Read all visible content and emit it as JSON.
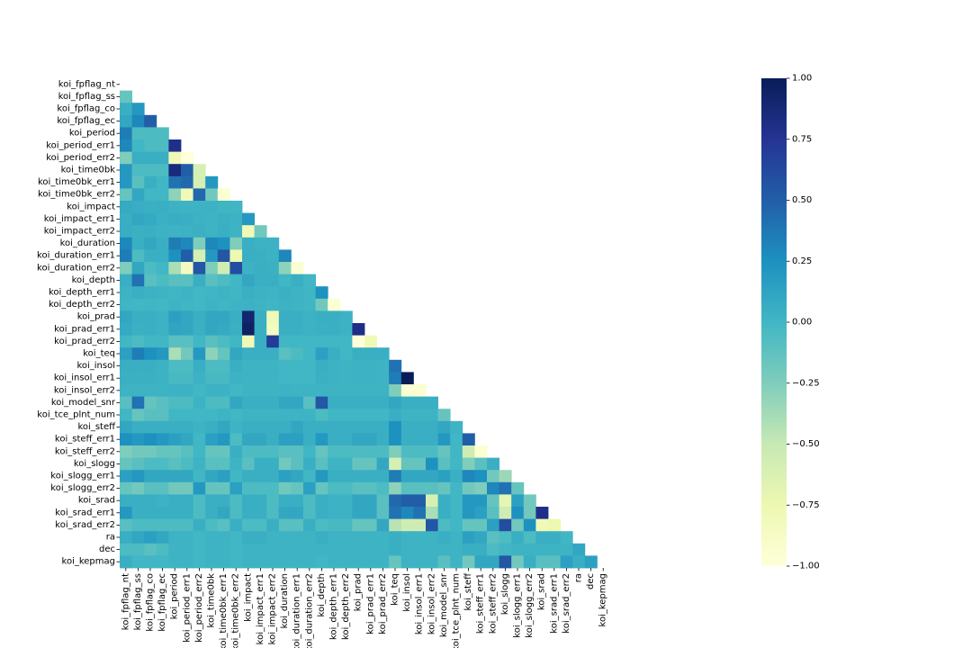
{
  "chart_data": {
    "type": "heatmap",
    "title": "",
    "xlabel": "",
    "ylabel": "",
    "mask": "upper-triangle-including-diagonal",
    "colormap": "YlGnBu",
    "colormap_stops": [
      "#ffffd9",
      "#edf8b1",
      "#c7e9b4",
      "#7fcdbb",
      "#41b6c4",
      "#1d91c0",
      "#225ea8",
      "#253494",
      "#081d58"
    ],
    "vmin": -1.0,
    "vmax": 1.0,
    "colorbar_ticks": [
      {
        "value": 1.0,
        "label": "1.00"
      },
      {
        "value": 0.75,
        "label": "0.75"
      },
      {
        "value": 0.5,
        "label": "0.50"
      },
      {
        "value": 0.25,
        "label": "0.25"
      },
      {
        "value": 0.0,
        "label": "0.00"
      },
      {
        "value": -0.25,
        "label": "−0.25"
      },
      {
        "value": -0.5,
        "label": "−0.50"
      },
      {
        "value": -0.75,
        "label": "−0.75"
      },
      {
        "value": -1.0,
        "label": "−1.00"
      }
    ],
    "variables": [
      "koi_fpflag_nt",
      "koi_fpflag_ss",
      "koi_fpflag_co",
      "koi_fpflag_ec",
      "koi_period",
      "koi_period_err1",
      "koi_period_err2",
      "koi_time0bk",
      "koi_time0bk_err1",
      "koi_time0bk_err2",
      "koi_impact",
      "koi_impact_err1",
      "koi_impact_err2",
      "koi_duration",
      "koi_duration_err1",
      "koi_duration_err2",
      "koi_depth",
      "koi_depth_err1",
      "koi_depth_err2",
      "koi_prad",
      "koi_prad_err1",
      "koi_prad_err2",
      "koi_teq",
      "koi_insol",
      "koi_insol_err1",
      "koi_insol_err2",
      "koi_model_snr",
      "koi_tce_plnt_num",
      "koi_steff",
      "koi_steff_err1",
      "koi_steff_err2",
      "koi_slogg",
      "koi_slogg_err1",
      "koi_slogg_err2",
      "koi_srad",
      "koi_srad_err1",
      "koi_srad_err2",
      "ra",
      "dec",
      "koi_kepmag"
    ],
    "matrix": [
      [],
      [
        -0.15
      ],
      [
        0.05,
        0.2
      ],
      [
        0.1,
        0.3,
        0.5
      ],
      [
        0.35,
        -0.05,
        -0.05,
        -0.05
      ],
      [
        0.3,
        0.0,
        -0.05,
        -0.05,
        0.8
      ],
      [
        -0.25,
        0.05,
        0.05,
        0.05,
        -0.8,
        -1.0
      ],
      [
        0.2,
        -0.05,
        -0.05,
        -0.05,
        0.85,
        0.5,
        -0.6
      ],
      [
        0.2,
        -0.1,
        0.05,
        0.0,
        0.4,
        0.45,
        -0.6,
        0.2
      ],
      [
        -0.15,
        0.1,
        0.0,
        0.0,
        -0.3,
        -0.8,
        0.45,
        -0.2,
        -0.95
      ],
      [
        0.08,
        0.06,
        0.04,
        0.05,
        0.03,
        0.02,
        0.02,
        0.03,
        0.01,
        0.01
      ],
      [
        0.05,
        0.1,
        0.08,
        0.04,
        0.06,
        0.05,
        0.03,
        0.02,
        0.04,
        0.03,
        0.2
      ],
      [
        0.06,
        0.04,
        0.05,
        0.03,
        0.02,
        0.03,
        0.04,
        0.02,
        0.05,
        0.02,
        -0.8,
        -0.2
      ],
      [
        0.3,
        0.05,
        0.1,
        0.05,
        0.35,
        0.3,
        -0.25,
        0.3,
        0.25,
        -0.25,
        0.05,
        0.03,
        0.03
      ],
      [
        0.35,
        -0.05,
        0.05,
        0.05,
        0.25,
        0.5,
        -0.6,
        0.2,
        0.55,
        -0.75,
        0.05,
        0.04,
        0.03,
        0.3
      ],
      [
        -0.25,
        0.1,
        -0.05,
        0.0,
        -0.4,
        -0.85,
        0.55,
        -0.25,
        -0.55,
        0.6,
        0.03,
        0.05,
        0.04,
        -0.3,
        -0.95
      ],
      [
        0.05,
        0.4,
        -0.1,
        -0.05,
        -0.1,
        -0.1,
        0.05,
        -0.1,
        -0.05,
        0.0,
        0.1,
        0.05,
        0.05,
        0.0,
        0.05,
        0.0
      ],
      [
        0.02,
        0.05,
        0.03,
        0.02,
        0.01,
        0.02,
        0.0,
        0.01,
        0.02,
        0.01,
        0.05,
        0.03,
        0.02,
        0.04,
        0.02,
        0.01,
        0.25
      ],
      [
        0.01,
        0.0,
        0.01,
        0.0,
        0.02,
        0.01,
        0.0,
        0.02,
        0.01,
        0.02,
        0.03,
        0.02,
        0.01,
        0.03,
        0.02,
        0.01,
        -0.2,
        -0.95
      ],
      [
        0.1,
        0.05,
        0.05,
        0.03,
        0.15,
        0.1,
        0.05,
        0.1,
        0.1,
        0.05,
        0.9,
        0.05,
        -0.8,
        0.05,
        0.05,
        0.03,
        0.05,
        0.05,
        0.03
      ],
      [
        0.08,
        0.04,
        0.05,
        0.03,
        0.12,
        0.1,
        0.04,
        0.1,
        0.08,
        0.04,
        0.95,
        0.05,
        -0.85,
        0.05,
        0.05,
        0.03,
        0.04,
        0.05,
        0.03,
        0.8
      ],
      [
        0.0,
        -0.05,
        0.0,
        0.0,
        -0.1,
        -0.1,
        0.0,
        -0.1,
        -0.05,
        0.0,
        -0.8,
        0.05,
        0.7,
        0.0,
        0.0,
        0.0,
        0.0,
        0.0,
        0.0,
        -1.0,
        -0.8
      ],
      [
        0.15,
        0.35,
        0.25,
        0.2,
        -0.4,
        -0.2,
        0.2,
        -0.3,
        -0.15,
        0.1,
        0.05,
        0.05,
        0.05,
        -0.1,
        -0.05,
        0.0,
        0.15,
        0.05,
        0.0,
        0.05,
        0.05,
        0.05
      ],
      [
        0.05,
        0.05,
        0.05,
        0.03,
        -0.05,
        -0.05,
        0.05,
        -0.05,
        -0.05,
        0.05,
        0.02,
        0.02,
        0.02,
        0.0,
        0.0,
        0.0,
        0.05,
        0.03,
        0.02,
        0.03,
        0.03,
        0.02,
        0.4
      ],
      [
        0.04,
        0.04,
        0.04,
        0.03,
        -0.03,
        -0.03,
        0.03,
        -0.03,
        -0.03,
        0.03,
        0.02,
        0.02,
        0.02,
        0.0,
        0.0,
        0.0,
        0.04,
        0.03,
        0.02,
        0.03,
        0.03,
        0.02,
        0.35,
        1.0
      ],
      [
        0.02,
        0.02,
        0.02,
        0.02,
        0.03,
        0.03,
        0.0,
        0.03,
        0.03,
        0.0,
        0.02,
        0.02,
        0.02,
        0.03,
        0.02,
        0.02,
        0.02,
        0.02,
        0.02,
        0.02,
        0.02,
        0.02,
        -0.25,
        -0.95,
        -0.95
      ],
      [
        -0.1,
        0.4,
        -0.15,
        -0.1,
        -0.05,
        -0.05,
        0.03,
        -0.05,
        -0.05,
        0.1,
        0.05,
        0.05,
        0.05,
        0.1,
        0.1,
        -0.1,
        0.55,
        0.05,
        0.05,
        0.05,
        0.05,
        0.05,
        0.1,
        0.05,
        0.05,
        0.05
      ],
      [
        0.0,
        -0.15,
        -0.1,
        -0.1,
        0.0,
        0.0,
        0.0,
        0.0,
        0.02,
        0.0,
        0.02,
        0.02,
        0.02,
        0.02,
        0.02,
        0.02,
        -0.05,
        0.0,
        0.0,
        0.0,
        0.0,
        0.0,
        0.05,
        0.02,
        0.02,
        0.02,
        -0.15
      ],
      [
        0.1,
        0.05,
        0.05,
        0.05,
        0.05,
        0.05,
        0.02,
        0.05,
        0.1,
        0.02,
        0.05,
        0.05,
        0.05,
        0.05,
        0.1,
        0.05,
        0.05,
        0.05,
        0.05,
        0.05,
        0.05,
        0.05,
        0.25,
        0.05,
        0.05,
        0.05,
        0.1,
        0.02
      ],
      [
        0.25,
        0.2,
        0.25,
        0.2,
        0.15,
        0.1,
        0.0,
        0.15,
        0.2,
        -0.05,
        0.1,
        0.1,
        0.05,
        0.15,
        0.15,
        0.05,
        0.2,
        0.05,
        0.05,
        0.1,
        0.1,
        0.05,
        0.25,
        0.05,
        0.05,
        0.05,
        0.2,
        0.0,
        0.5
      ],
      [
        -0.25,
        -0.2,
        -0.2,
        -0.15,
        -0.15,
        -0.1,
        0.0,
        -0.15,
        -0.15,
        0.05,
        -0.05,
        -0.05,
        -0.05,
        -0.1,
        -0.1,
        0.0,
        -0.15,
        -0.05,
        -0.05,
        -0.05,
        -0.05,
        -0.05,
        -0.25,
        -0.05,
        -0.05,
        -0.05,
        -0.15,
        0.0,
        -0.55,
        -0.95
      ],
      [
        -0.15,
        -0.1,
        -0.05,
        -0.05,
        -0.1,
        -0.05,
        0.02,
        -0.1,
        -0.1,
        0.02,
        -0.1,
        0.05,
        0.05,
        -0.2,
        -0.1,
        0.05,
        -0.1,
        0.02,
        0.02,
        -0.15,
        -0.15,
        0.1,
        -0.6,
        -0.15,
        -0.15,
        0.25,
        -0.1,
        0.0,
        -0.25,
        -0.1,
        0.05
      ],
      [
        0.15,
        0.2,
        0.1,
        0.1,
        0.1,
        0.1,
        0.0,
        0.1,
        0.15,
        0.0,
        0.05,
        0.05,
        0.05,
        0.15,
        0.1,
        0.0,
        0.2,
        0.05,
        0.05,
        0.05,
        0.05,
        0.05,
        0.35,
        0.1,
        0.1,
        0.1,
        0.15,
        0.05,
        0.3,
        0.25,
        -0.2,
        -0.35
      ],
      [
        -0.15,
        -0.2,
        -0.1,
        -0.1,
        -0.2,
        -0.2,
        0.2,
        -0.15,
        -0.15,
        0.15,
        -0.05,
        -0.05,
        -0.05,
        -0.2,
        -0.15,
        0.15,
        -0.15,
        -0.05,
        -0.05,
        -0.1,
        -0.1,
        -0.05,
        -0.3,
        -0.1,
        -0.1,
        -0.1,
        -0.15,
        0.0,
        -0.2,
        -0.25,
        0.3,
        0.4,
        -0.15
      ],
      [
        0.05,
        0.05,
        0.05,
        0.03,
        0.05,
        0.05,
        -0.05,
        0.05,
        0.05,
        -0.05,
        0.05,
        0.05,
        -0.05,
        0.05,
        0.05,
        -0.05,
        0.05,
        0.03,
        0.03,
        0.1,
        0.1,
        -0.1,
        0.45,
        0.5,
        0.5,
        -0.6,
        0.05,
        0.0,
        0.2,
        0.2,
        -0.15,
        -0.7,
        0.15,
        -0.2
      ],
      [
        0.2,
        0.05,
        0.05,
        0.05,
        0.05,
        0.05,
        -0.05,
        0.05,
        0.1,
        -0.05,
        0.05,
        0.05,
        -0.05,
        0.1,
        0.1,
        -0.05,
        0.05,
        0.03,
        0.03,
        0.1,
        0.1,
        -0.1,
        0.4,
        0.3,
        0.4,
        -0.4,
        0.05,
        0.0,
        0.2,
        0.15,
        -0.1,
        -0.55,
        0.25,
        -0.2,
        0.8
      ],
      [
        -0.1,
        -0.05,
        -0.05,
        -0.05,
        -0.05,
        -0.05,
        0.05,
        -0.05,
        -0.1,
        0.05,
        -0.05,
        -0.05,
        0.05,
        -0.1,
        -0.1,
        0.05,
        -0.05,
        -0.03,
        -0.03,
        -0.15,
        -0.15,
        0.1,
        -0.45,
        -0.55,
        -0.55,
        0.55,
        -0.05,
        0.0,
        -0.15,
        -0.15,
        0.15,
        0.6,
        -0.2,
        0.25,
        -0.8,
        -0.75
      ],
      [
        0.05,
        0.1,
        0.15,
        0.1,
        0.02,
        0.02,
        0.0,
        0.02,
        0.02,
        0.0,
        0.05,
        0.05,
        0.02,
        0.02,
        0.02,
        0.02,
        0.05,
        0.02,
        0.02,
        0.02,
        0.02,
        0.02,
        0.05,
        0.02,
        0.02,
        0.02,
        0.05,
        0.02,
        0.15,
        0.1,
        -0.1,
        -0.05,
        0.05,
        -0.05,
        0.05,
        0.05,
        0.0
      ],
      [
        -0.05,
        -0.05,
        -0.1,
        -0.05,
        0.02,
        0.02,
        0.0,
        0.02,
        0.02,
        0.0,
        0.02,
        0.02,
        0.02,
        0.02,
        0.02,
        0.02,
        0.02,
        0.02,
        0.02,
        0.02,
        0.02,
        0.02,
        0.05,
        0.02,
        0.02,
        0.02,
        0.02,
        0.02,
        0.05,
        0.05,
        -0.05,
        0.0,
        0.02,
        0.02,
        0.02,
        0.02,
        0.02,
        0.1
      ],
      [
        0.05,
        0.0,
        0.0,
        0.0,
        0.02,
        0.02,
        0.0,
        0.02,
        0.02,
        0.0,
        0.02,
        0.02,
        0.02,
        0.02,
        0.02,
        0.02,
        0.0,
        0.02,
        0.02,
        0.02,
        0.02,
        0.02,
        -0.15,
        0.02,
        0.02,
        0.02,
        -0.1,
        0.02,
        -0.2,
        0.1,
        0.1,
        0.55,
        -0.2,
        0.05,
        -0.1,
        -0.1,
        0.15,
        0.05,
        0.15
      ]
    ]
  }
}
